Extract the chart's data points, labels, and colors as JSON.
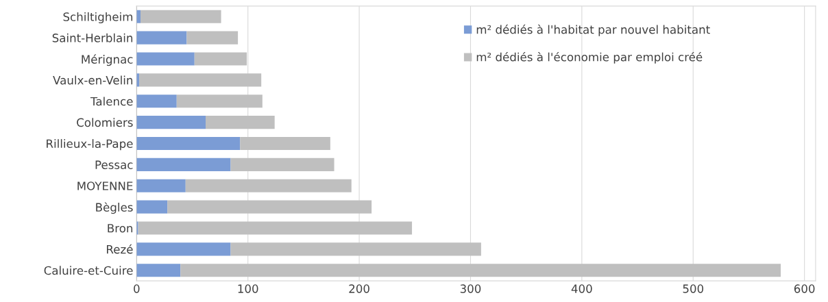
{
  "chart_data": {
    "type": "bar",
    "orientation": "horizontal",
    "stacked": true,
    "categories": [
      "Schiltigheim",
      "Saint-Herblain",
      "Mérignac",
      "Vaulx-en-Velin",
      "Talence",
      "Colomiers",
      "Rillieux-la-Pape",
      "Pessac",
      "MOYENNE",
      "Bègles",
      "Bron",
      "Rezé",
      "Caluire-et-Cuire"
    ],
    "series": [
      {
        "name": "m² dédiés à l'habitat par nouvel habitant",
        "color": "#7b9cd5",
        "values": [
          3.5,
          45,
          52,
          2.3,
          36,
          62,
          93,
          84.5,
          44,
          27.6,
          1.4,
          84.5,
          39.4
        ]
      },
      {
        "name": "m² dédiés à l'économie par emploi créé",
        "color": "#bfbfbf",
        "values": [
          72.4,
          46,
          47,
          109.7,
          77,
          62,
          81,
          93,
          149,
          183.5,
          246,
          225,
          539.3
        ]
      }
    ],
    "xlim": [
      0,
      610
    ],
    "xticks": [
      0,
      100,
      200,
      300,
      400,
      500,
      600
    ],
    "grid": "x",
    "legend": "top right"
  }
}
